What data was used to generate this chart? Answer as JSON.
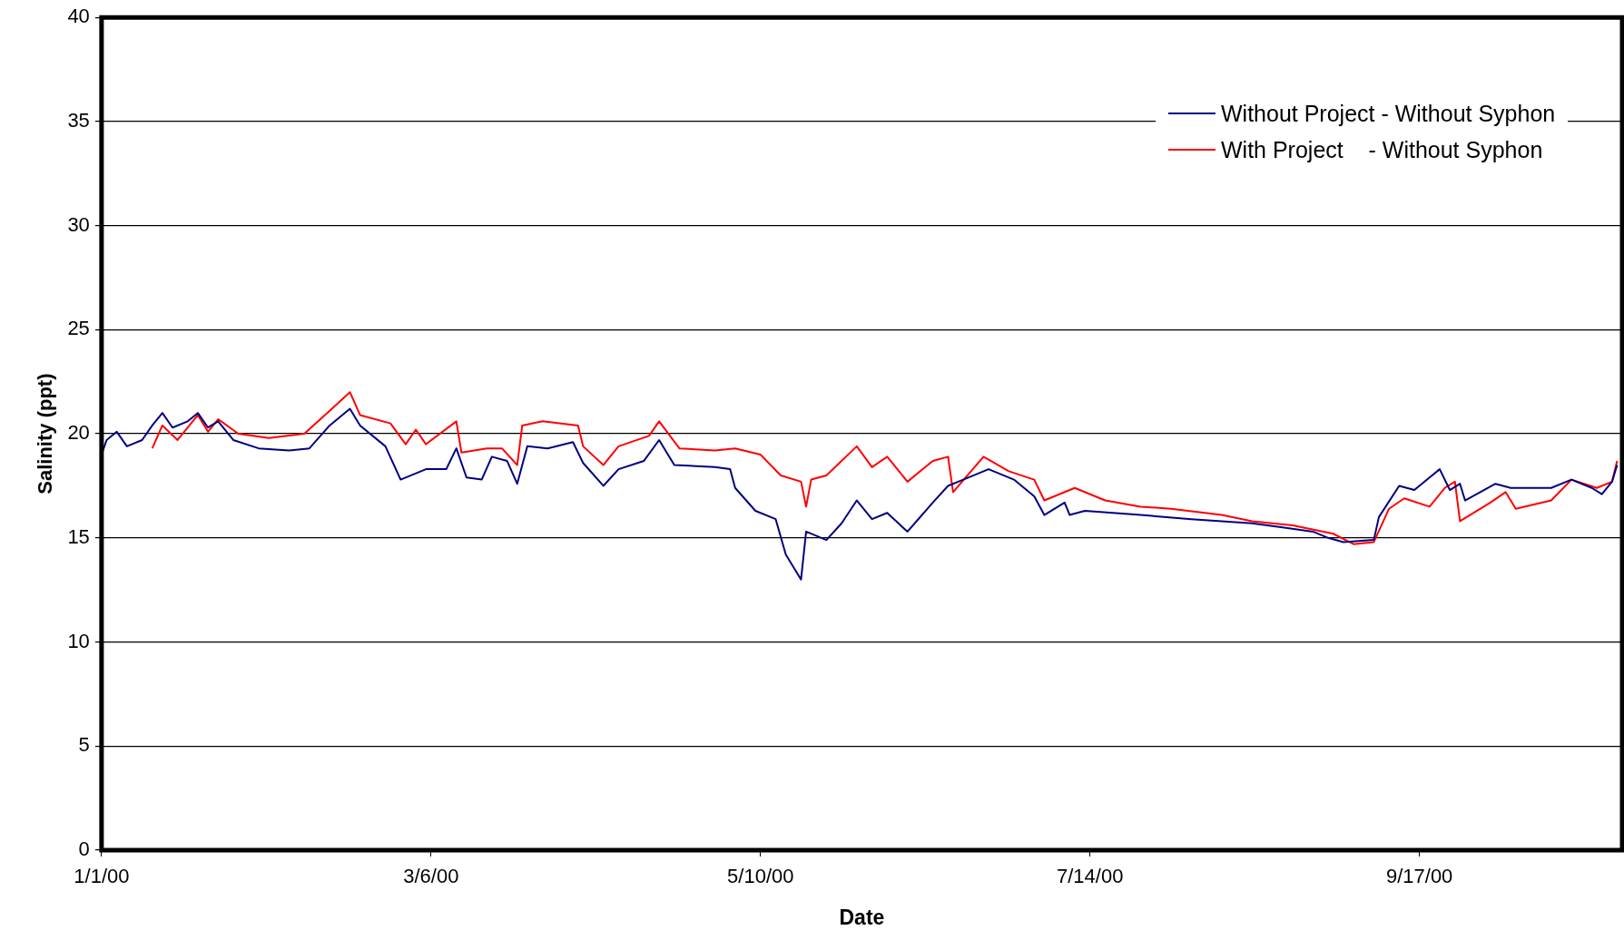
{
  "chart_data": {
    "type": "line",
    "xlabel": "Date",
    "ylabel": "Salinity (ppt)",
    "xlim": [
      "2000-01-01",
      "2000-10-27"
    ],
    "xticks": [
      {
        "value": "2000-01-01",
        "label": "1/1/00"
      },
      {
        "value": "2000-03-06",
        "label": "3/6/00"
      },
      {
        "value": "2000-05-10",
        "label": "5/10/00"
      },
      {
        "value": "2000-07-14",
        "label": "7/14/00"
      },
      {
        "value": "2000-09-17",
        "label": "9/17/00"
      }
    ],
    "ylim": [
      0,
      40
    ],
    "yticks": [
      0,
      5,
      10,
      15,
      20,
      25,
      30,
      35,
      40
    ],
    "grid": "y",
    "legend": "top right",
    "marker": "none",
    "line_style": "solid",
    "series": [
      {
        "name": "Without Project - Without Syphon",
        "color": "#000080",
        "x": [
          "2000-01-01",
          "2000-01-02",
          "2000-01-04",
          "2000-01-06",
          "2000-01-09",
          "2000-01-11",
          "2000-01-13",
          "2000-01-15",
          "2000-01-18",
          "2000-01-20",
          "2000-01-22",
          "2000-01-24",
          "2000-01-27",
          "2000-02-01",
          "2000-02-07",
          "2000-02-11",
          "2000-02-15",
          "2000-02-19",
          "2000-02-21",
          "2000-02-26",
          "2000-02-29",
          "2000-03-05",
          "2000-03-09",
          "2000-03-11",
          "2000-03-13",
          "2000-03-16",
          "2000-03-18",
          "2000-03-21",
          "2000-03-23",
          "2000-03-25",
          "2000-03-29",
          "2000-04-03",
          "2000-04-05",
          "2000-04-09",
          "2000-04-12",
          "2000-04-17",
          "2000-04-20",
          "2000-04-23",
          "2000-05-01",
          "2000-05-04",
          "2000-05-05",
          "2000-05-09",
          "2000-05-13",
          "2000-05-15",
          "2000-05-18",
          "2000-05-19",
          "2000-05-23",
          "2000-05-26",
          "2000-05-29",
          "2000-06-01",
          "2000-06-04",
          "2000-06-08",
          "2000-06-13",
          "2000-06-16",
          "2000-06-19",
          "2000-06-24",
          "2000-06-29",
          "2000-07-03",
          "2000-07-05",
          "2000-07-09",
          "2000-07-10",
          "2000-07-13",
          "2000-07-24",
          "2000-08-03",
          "2000-08-09",
          "2000-08-15",
          "2000-08-21",
          "2000-08-27",
          "2000-08-30",
          "2000-09-02",
          "2000-09-08",
          "2000-09-09",
          "2000-09-13",
          "2000-09-16",
          "2000-09-19",
          "2000-09-21",
          "2000-09-23",
          "2000-09-25",
          "2000-09-26",
          "2000-10-02",
          "2000-10-05",
          "2000-10-13",
          "2000-10-17",
          "2000-10-21",
          "2000-10-23",
          "2000-10-25",
          "2000-10-26"
        ],
        "values": [
          19.0,
          19.7,
          20.1,
          19.4,
          19.7,
          20.4,
          21.0,
          20.3,
          20.6,
          21.0,
          20.3,
          20.6,
          19.7,
          19.3,
          19.2,
          19.3,
          20.4,
          21.2,
          20.4,
          19.4,
          17.8,
          18.3,
          18.3,
          19.3,
          17.9,
          17.8,
          18.9,
          18.7,
          17.6,
          19.4,
          19.3,
          19.6,
          18.6,
          17.5,
          18.3,
          18.7,
          19.7,
          18.5,
          18.4,
          18.3,
          17.4,
          16.3,
          15.9,
          14.2,
          13.0,
          15.3,
          14.9,
          15.7,
          16.8,
          15.9,
          16.2,
          15.3,
          16.7,
          17.5,
          17.8,
          18.3,
          17.8,
          17.0,
          16.1,
          16.7,
          16.1,
          16.3,
          16.1,
          15.9,
          15.8,
          15.7,
          15.5,
          15.3,
          15.0,
          14.8,
          14.9,
          16.0,
          17.5,
          17.3,
          17.9,
          18.3,
          17.3,
          17.6,
          16.8,
          17.6,
          17.4,
          17.4,
          17.8,
          17.4,
          17.1,
          17.7,
          18.5
        ]
      },
      {
        "name": "With Project    - Without Syphon",
        "color": "#ff0000",
        "x": [
          "2000-01-11",
          "2000-01-13",
          "2000-01-16",
          "2000-01-20",
          "2000-01-22",
          "2000-01-24",
          "2000-01-28",
          "2000-02-03",
          "2000-02-10",
          "2000-02-15",
          "2000-02-19",
          "2000-02-21",
          "2000-02-27",
          "2000-03-01",
          "2000-03-03",
          "2000-03-05",
          "2000-03-11",
          "2000-03-12",
          "2000-03-17",
          "2000-03-20",
          "2000-03-23",
          "2000-03-24",
          "2000-03-28",
          "2000-04-04",
          "2000-04-05",
          "2000-04-09",
          "2000-04-12",
          "2000-04-18",
          "2000-04-20",
          "2000-04-24",
          "2000-05-01",
          "2000-05-05",
          "2000-05-10",
          "2000-05-14",
          "2000-05-18",
          "2000-05-19",
          "2000-05-20",
          "2000-05-23",
          "2000-05-29",
          "2000-06-01",
          "2000-06-04",
          "2000-06-08",
          "2000-06-13",
          "2000-06-16",
          "2000-06-17",
          "2000-06-23",
          "2000-06-28",
          "2000-07-03",
          "2000-07-05",
          "2000-07-11",
          "2000-07-17",
          "2000-07-24",
          "2000-07-30",
          "2000-08-09",
          "2000-08-15",
          "2000-08-23",
          "2000-08-31",
          "2000-09-04",
          "2000-09-08",
          "2000-09-11",
          "2000-09-14",
          "2000-09-19",
          "2000-09-22",
          "2000-09-24",
          "2000-09-25",
          "2000-10-01",
          "2000-10-04",
          "2000-10-06",
          "2000-10-13",
          "2000-10-17",
          "2000-10-22",
          "2000-10-25",
          "2000-10-26"
        ],
        "values": [
          19.3,
          20.4,
          19.7,
          20.9,
          20.1,
          20.7,
          20.0,
          19.8,
          20.0,
          21.1,
          22.0,
          20.9,
          20.5,
          19.5,
          20.2,
          19.5,
          20.6,
          19.1,
          19.3,
          19.3,
          18.5,
          20.4,
          20.6,
          20.4,
          19.4,
          18.5,
          19.4,
          19.9,
          20.6,
          19.3,
          19.2,
          19.3,
          19.0,
          18.0,
          17.7,
          16.5,
          17.8,
          18.0,
          19.4,
          18.4,
          18.9,
          17.7,
          18.7,
          18.9,
          17.2,
          18.9,
          18.2,
          17.8,
          16.8,
          17.4,
          16.8,
          16.5,
          16.4,
          16.1,
          15.8,
          15.6,
          15.2,
          14.7,
          14.8,
          16.4,
          16.9,
          16.5,
          17.4,
          17.7,
          15.8,
          16.7,
          17.2,
          16.4,
          16.8,
          17.8,
          17.4,
          17.7,
          18.7
        ]
      }
    ]
  }
}
